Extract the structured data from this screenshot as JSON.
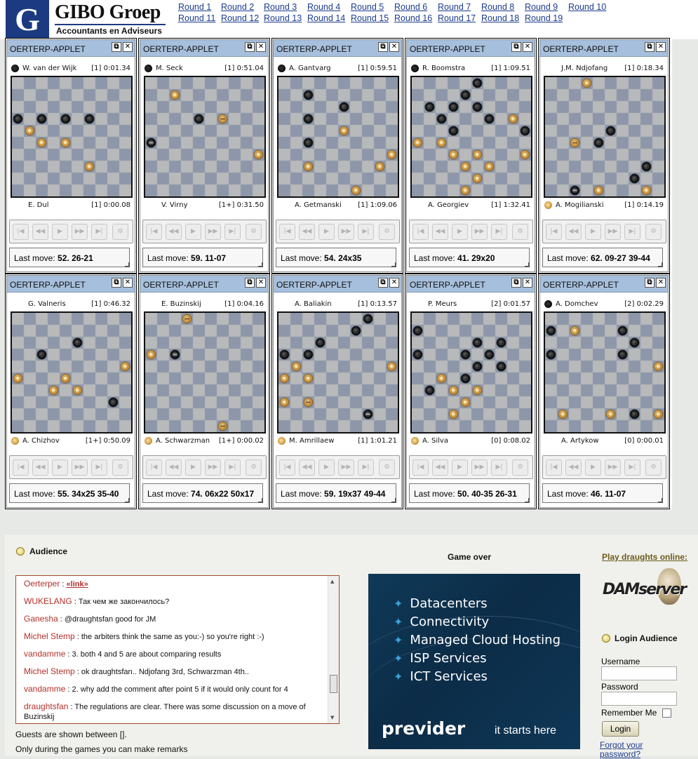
{
  "logo": {
    "title": "GIBO Groep",
    "subtitle": "Accountants en Adviseurs",
    "mark": "G"
  },
  "rounds": [
    "Round 1",
    "Round 2",
    "Round 3",
    "Round 4",
    "Round 5",
    "Round 6",
    "Round 7",
    "Round 8",
    "Round 9",
    "Round 10",
    "Round 11",
    "Round 12",
    "Round 13",
    "Round 14",
    "Round 15",
    "Round 16",
    "Round 17",
    "Round 18",
    "Round 19"
  ],
  "applet_title": "OERTERP-APPLET",
  "last_move_label": "Last move:",
  "games": [
    {
      "top": {
        "name": "W. van der Wijk",
        "piece": "black",
        "score": "[1]",
        "time": "0:01.34"
      },
      "bottom": {
        "name": "E. Dul",
        "piece": "",
        "score": "[1]",
        "time": "0:00.08"
      },
      "last_move": "52. 26-21",
      "pieces": [
        [
          3,
          0,
          "b"
        ],
        [
          3,
          2,
          "b"
        ],
        [
          3,
          4,
          "b"
        ],
        [
          3,
          6,
          "b"
        ],
        [
          4,
          1,
          "w"
        ],
        [
          5,
          2,
          "w"
        ],
        [
          5,
          4,
          "w"
        ],
        [
          7,
          6,
          "w"
        ]
      ]
    },
    {
      "top": {
        "name": "M. Seck",
        "piece": "black",
        "score": "[1]",
        "time": "0:51.04"
      },
      "bottom": {
        "name": "V. Virny",
        "piece": "",
        "score": "[1+]",
        "time": "0:31.50"
      },
      "last_move": "59. 11-07",
      "pieces": [
        [
          1,
          2,
          "w"
        ],
        [
          3,
          4,
          "b"
        ],
        [
          3,
          6,
          "W"
        ],
        [
          5,
          0,
          "B"
        ],
        [
          6,
          9,
          "w"
        ]
      ]
    },
    {
      "top": {
        "name": "A. Gantvarg",
        "piece": "black",
        "score": "[1]",
        "time": "0:59.51"
      },
      "bottom": {
        "name": "A. Getmanski",
        "piece": "",
        "score": "[1]",
        "time": "1:09.06"
      },
      "last_move": "54. 24x35",
      "pieces": [
        [
          1,
          2,
          "b"
        ],
        [
          2,
          5,
          "b"
        ],
        [
          3,
          2,
          "b"
        ],
        [
          4,
          5,
          "w"
        ],
        [
          5,
          2,
          "b"
        ],
        [
          6,
          9,
          "w"
        ],
        [
          7,
          2,
          "w"
        ],
        [
          7,
          8,
          "w"
        ],
        [
          9,
          6,
          "w"
        ]
      ]
    },
    {
      "top": {
        "name": "R. Boomstra",
        "piece": "black",
        "score": "[1]",
        "time": "1:09.51"
      },
      "bottom": {
        "name": "A. Georgiev",
        "piece": "",
        "score": "[1]",
        "time": "1:32.41"
      },
      "last_move": "41. 29x20",
      "pieces": [
        [
          0,
          5,
          "b"
        ],
        [
          1,
          4,
          "b"
        ],
        [
          2,
          1,
          "b"
        ],
        [
          2,
          3,
          "b"
        ],
        [
          2,
          5,
          "b"
        ],
        [
          3,
          2,
          "b"
        ],
        [
          3,
          6,
          "b"
        ],
        [
          3,
          8,
          "w"
        ],
        [
          4,
          3,
          "b"
        ],
        [
          4,
          9,
          "b"
        ],
        [
          5,
          0,
          "w"
        ],
        [
          5,
          2,
          "w"
        ],
        [
          6,
          3,
          "w"
        ],
        [
          6,
          5,
          "w"
        ],
        [
          6,
          9,
          "w"
        ],
        [
          7,
          4,
          "w"
        ],
        [
          7,
          6,
          "w"
        ],
        [
          8,
          5,
          "w"
        ],
        [
          9,
          4,
          "w"
        ]
      ]
    },
    {
      "top": {
        "name": "J.M. Ndjofang",
        "piece": "",
        "score": "[1]",
        "time": "0:18.34"
      },
      "bottom": {
        "name": "A. Mogilianski",
        "piece": "white",
        "score": "[1]",
        "time": "0:14.19"
      },
      "last_move": "62. 09-27 39-44",
      "pieces": [
        [
          0,
          3,
          "w"
        ],
        [
          4,
          5,
          "b"
        ],
        [
          5,
          2,
          "W"
        ],
        [
          5,
          4,
          "b"
        ],
        [
          7,
          8,
          "b"
        ],
        [
          8,
          7,
          "b"
        ],
        [
          9,
          2,
          "B"
        ],
        [
          9,
          4,
          "w"
        ],
        [
          9,
          8,
          "w"
        ]
      ]
    },
    {
      "top": {
        "name": "G. Valneris",
        "piece": "",
        "score": "[1]",
        "time": "0:46.32"
      },
      "bottom": {
        "name": "A. Chizhov",
        "piece": "white",
        "score": "[1+]",
        "time": "0:50.09"
      },
      "last_move": "55. 34x25 35-40",
      "pieces": [
        [
          2,
          5,
          "b"
        ],
        [
          3,
          2,
          "b"
        ],
        [
          4,
          9,
          "w"
        ],
        [
          5,
          0,
          "w"
        ],
        [
          5,
          4,
          "w"
        ],
        [
          6,
          3,
          "w"
        ],
        [
          6,
          5,
          "w"
        ],
        [
          7,
          8,
          "b"
        ]
      ]
    },
    {
      "top": {
        "name": "E. Buzinskij",
        "piece": "",
        "score": "[1]",
        "time": "0:04.16"
      },
      "bottom": {
        "name": "A. Schwarzman",
        "piece": "white",
        "score": "[1+]",
        "time": "0:00.02"
      },
      "last_move": "74. 06x22 50x17",
      "pieces": [
        [
          0,
          3,
          "W"
        ],
        [
          3,
          0,
          "w"
        ],
        [
          3,
          2,
          "B"
        ],
        [
          9,
          6,
          "W"
        ]
      ]
    },
    {
      "top": {
        "name": "A. Baliakin",
        "piece": "",
        "score": "[1]",
        "time": "0:13.57"
      },
      "bottom": {
        "name": "M. Amrillaew",
        "piece": "white",
        "score": "[1]",
        "time": "1:01.21"
      },
      "last_move": "59. 19x37 49-44",
      "pieces": [
        [
          0,
          7,
          "b"
        ],
        [
          1,
          6,
          "b"
        ],
        [
          2,
          3,
          "b"
        ],
        [
          3,
          0,
          "b"
        ],
        [
          3,
          2,
          "b"
        ],
        [
          4,
          1,
          "w"
        ],
        [
          4,
          9,
          "w"
        ],
        [
          5,
          0,
          "w"
        ],
        [
          5,
          2,
          "w"
        ],
        [
          7,
          0,
          "w"
        ],
        [
          7,
          2,
          "W"
        ],
        [
          8,
          7,
          "B"
        ]
      ]
    },
    {
      "top": {
        "name": "P. Meurs",
        "piece": "",
        "score": "[2]",
        "time": "0:01.57"
      },
      "bottom": {
        "name": "A. Silva",
        "piece": "white",
        "score": "[0]",
        "time": "0:08.02"
      },
      "last_move": "50. 40-35 26-31",
      "pieces": [
        [
          1,
          0,
          "b"
        ],
        [
          2,
          5,
          "b"
        ],
        [
          2,
          7,
          "b"
        ],
        [
          3,
          0,
          "b"
        ],
        [
          3,
          4,
          "b"
        ],
        [
          3,
          6,
          "b"
        ],
        [
          4,
          5,
          "b"
        ],
        [
          4,
          7,
          "b"
        ],
        [
          5,
          2,
          "w"
        ],
        [
          5,
          4,
          "b"
        ],
        [
          6,
          1,
          "b"
        ],
        [
          6,
          3,
          "w"
        ],
        [
          6,
          5,
          "w"
        ],
        [
          7,
          4,
          "w"
        ],
        [
          8,
          3,
          "w"
        ]
      ]
    },
    {
      "top": {
        "name": "A. Domchev",
        "piece": "black",
        "score": "[2]",
        "time": "0:02.29"
      },
      "bottom": {
        "name": "A. Artykow",
        "piece": "",
        "score": "[0]",
        "time": "0:00.01"
      },
      "last_move": "46. 11-07",
      "pieces": [
        [
          1,
          0,
          "b"
        ],
        [
          1,
          2,
          "w"
        ],
        [
          1,
          6,
          "b"
        ],
        [
          2,
          7,
          "b"
        ],
        [
          3,
          0,
          "b"
        ],
        [
          3,
          6,
          "b"
        ],
        [
          4,
          9,
          "w"
        ],
        [
          8,
          1,
          "w"
        ],
        [
          8,
          5,
          "w"
        ],
        [
          8,
          7,
          "b"
        ],
        [
          8,
          9,
          "w"
        ]
      ]
    }
  ],
  "audience": {
    "title": "Audience",
    "messages": [
      {
        "user": "Oerterper",
        "text": "",
        "link": "«link»"
      },
      {
        "user": "WUKELANG",
        "text": "Так чем же закончилось?"
      },
      {
        "user": "Ganesha",
        "text": "@draughtsfan good for JM"
      },
      {
        "user": "Michel Stemp",
        "text": "the arbiters think the same as you:-) so you're right :-)"
      },
      {
        "user": "vandamme",
        "text": "3. both 4 and 5 are about comparing results"
      },
      {
        "user": "Michel Stemp",
        "text": "ok draughtsfan.. Ndjofang 3rd, Schwarzman 4th.."
      },
      {
        "user": "vandamme",
        "text": "2. why add the comment after point 5 if it would only count for 4"
      },
      {
        "user": "draughtsfan",
        "text": "The regulations are clear. There was some discussion on a move of Buzinskij"
      }
    ],
    "note1": "Guests are shown between [].",
    "note2": "Only during the games you can make remarks"
  },
  "game_status": "Game over",
  "ad": {
    "items": [
      "Datacenters",
      "Connectivity",
      "Managed Cloud Hosting",
      "ISP Services",
      "ICT Services"
    ],
    "brand": "previder",
    "slogan": "it starts here"
  },
  "right": {
    "play_link": "Play draughts online:",
    "server_logo": "DAMserver",
    "login_title": "Login Audience",
    "username_label": "Username",
    "password_label": "Password",
    "remember_label": "Remember Me",
    "login_button": "Login",
    "forgot_link": "Forgot your password?"
  },
  "colors": {
    "light_square": "#b7b9bb",
    "dark_square": "#8d97a9",
    "header": "#a6bfdc",
    "link": "#1c3b8f",
    "chat_user": "#b3302a"
  }
}
